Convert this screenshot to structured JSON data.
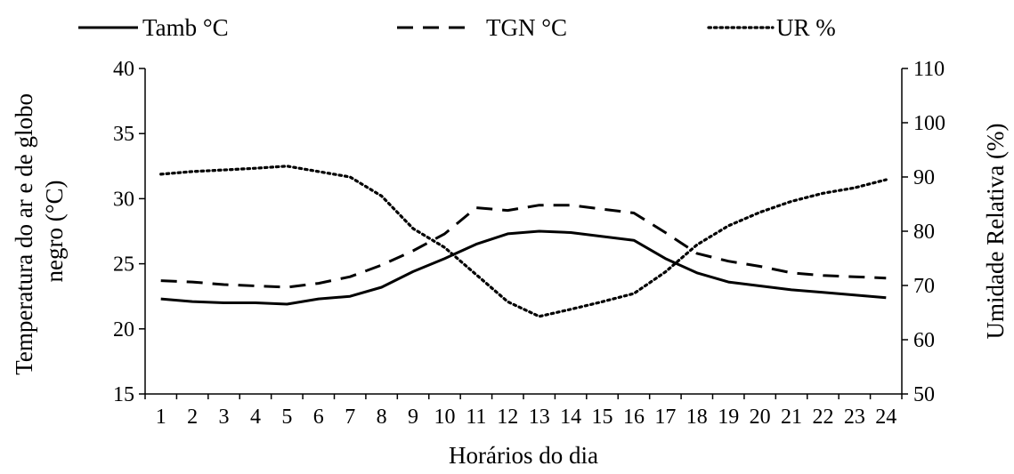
{
  "chart_data": {
    "type": "line",
    "x": [
      "1",
      "2",
      "3",
      "4",
      "5",
      "6",
      "7",
      "8",
      "9",
      "10",
      "11",
      "12",
      "13",
      "14",
      "15",
      "16",
      "17",
      "18",
      "19",
      "20",
      "21",
      "22",
      "23",
      "24"
    ],
    "xlabel": "Horários do dia",
    "ylabel_left": "Temperatura do ar e de globo negro (°C)",
    "ylabel_left_lines": [
      "Temperatura do ar e de globo",
      "negro (°C)"
    ],
    "ylabel_right": "Umidade Relativa (%)",
    "ylim_left": [
      15,
      40
    ],
    "yticks_left": [
      15,
      20,
      25,
      30,
      35,
      40
    ],
    "ylim_right": [
      50,
      110
    ],
    "yticks_right": [
      50,
      60,
      70,
      80,
      90,
      100,
      110
    ],
    "grid": false,
    "legend_position": "top",
    "series": [
      {
        "name": "Tamb °C",
        "axis": "left",
        "style": "solid",
        "values": [
          22.3,
          22.1,
          22.0,
          22.0,
          21.9,
          22.3,
          22.5,
          23.2,
          24.4,
          25.4,
          26.5,
          27.3,
          27.5,
          27.4,
          27.1,
          26.8,
          25.4,
          24.3,
          23.6,
          23.3,
          23.0,
          22.8,
          22.6,
          22.4
        ]
      },
      {
        "name": "TGN °C",
        "axis": "left",
        "style": "dashed",
        "values": [
          23.7,
          23.6,
          23.4,
          23.3,
          23.2,
          23.5,
          24.0,
          24.9,
          26.0,
          27.3,
          29.3,
          29.1,
          29.5,
          29.5,
          29.2,
          28.9,
          27.4,
          25.8,
          25.2,
          24.8,
          24.3,
          24.1,
          24.0,
          23.9
        ]
      },
      {
        "name": "UR %",
        "axis": "right",
        "style": "dotted",
        "values": [
          90.5,
          91.0,
          91.3,
          91.6,
          92.0,
          91.0,
          90.0,
          86.5,
          80.5,
          77.0,
          72.0,
          67.0,
          64.3,
          65.6,
          67.0,
          68.5,
          72.5,
          77.5,
          81.0,
          83.5,
          85.5,
          87.0,
          88.0,
          89.5
        ]
      }
    ]
  }
}
